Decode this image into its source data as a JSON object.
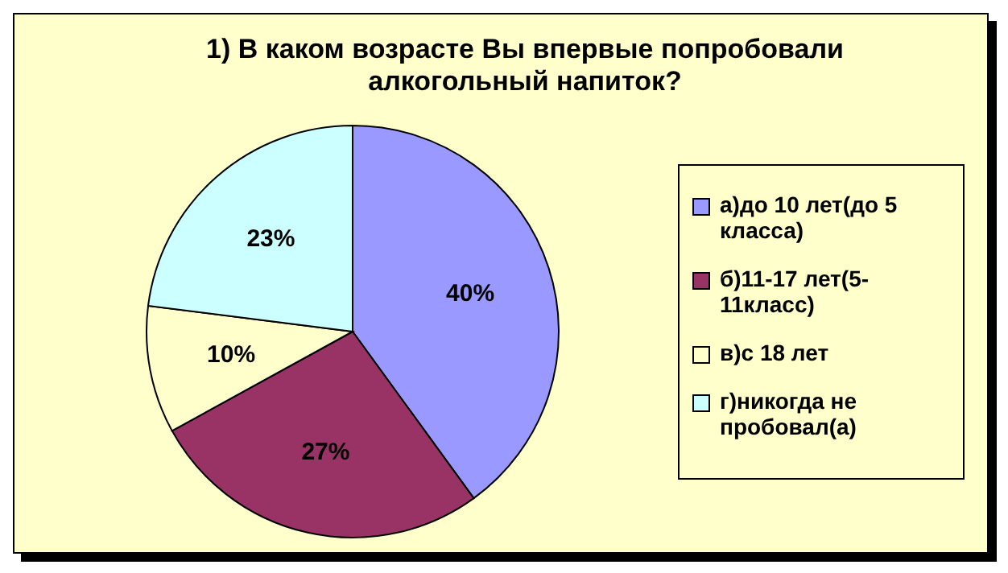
{
  "chart_data": {
    "type": "pie",
    "title": "1) В каком возрасте Вы впервые попробовали алкогольный напиток?",
    "categories": [
      "а)до 10 лет(до 5 класса)",
      "б)11-17 лет(5-11класс)",
      "в)с 18 лет",
      "г)никогда не пробовал(а)"
    ],
    "values": [
      40,
      27,
      10,
      23
    ],
    "colors": [
      "#9999ff",
      "#993366",
      "#ffffcc",
      "#ccffff"
    ],
    "value_labels": [
      "40%",
      "27%",
      "10%",
      "23%"
    ],
    "legend": "right"
  }
}
